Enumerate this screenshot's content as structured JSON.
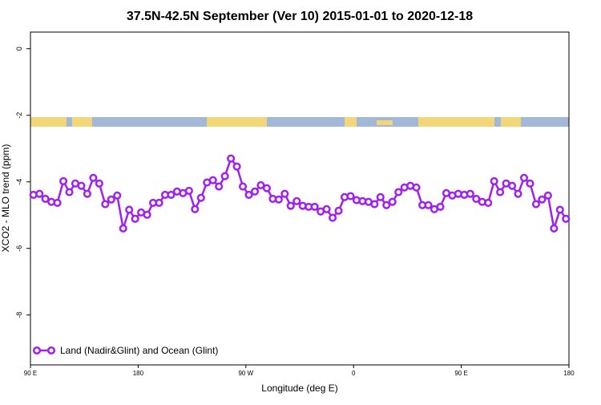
{
  "chart_data": {
    "type": "line",
    "title": "37.5N-42.5N September (Ver 10)   2015-01-01 to 2020-12-18",
    "x_label": "Longitude (deg E)",
    "y_label": "XCO2 - MLO trend (ppm)",
    "x": [
      92.5,
      97.5,
      102.5,
      107.5,
      112.5,
      117.5,
      122.5,
      127.5,
      132.5,
      137.5,
      142.5,
      147.5,
      152.5,
      157.5,
      162.5,
      167.5,
      172.5,
      177.5,
      182.5,
      187.5,
      192.5,
      197.5,
      202.5,
      207.5,
      212.5,
      217.5,
      222.5,
      227.5,
      232.5,
      237.5,
      242.5,
      247.5,
      252.5,
      257.5,
      262.5,
      267.5,
      272.5,
      277.5,
      282.5,
      287.5,
      292.5,
      297.5,
      302.5,
      307.5,
      312.5,
      317.5,
      322.5,
      327.5,
      332.5,
      337.5,
      342.5,
      347.5,
      352.5,
      357.5,
      362.5,
      367.5,
      372.5,
      377.5,
      382.5,
      387.5,
      392.5,
      397.5,
      402.5,
      407.5,
      412.5,
      417.5,
      422.5,
      427.5,
      432.5,
      437.5,
      442.5,
      447.5,
      452.5,
      457.5,
      462.5,
      467.5,
      472.5,
      477.5,
      482.5,
      487.5,
      492.5,
      497.5,
      502.5,
      507.5,
      512.5,
      517.5,
      522.5,
      527.5,
      532.5,
      537.5
    ],
    "series": [
      {
        "name": "Land (Nadir&Glint) and Ocean (Glint)",
        "color": "#a020f0",
        "values": [
          -4.39,
          -4.36,
          -4.51,
          -4.6,
          -4.63,
          -3.98,
          -4.31,
          -4.05,
          -4.12,
          -4.36,
          -3.88,
          -4.05,
          -4.67,
          -4.53,
          -4.41,
          -5.4,
          -4.84,
          -5.11,
          -4.92,
          -4.99,
          -4.63,
          -4.63,
          -4.39,
          -4.39,
          -4.29,
          -4.34,
          -4.27,
          -4.82,
          -4.48,
          -4.02,
          -3.95,
          -4.14,
          -3.83,
          -3.3,
          -3.54,
          -4.14,
          -4.39,
          -4.29,
          -4.1,
          -4.19,
          -4.51,
          -4.53,
          -4.36,
          -4.72,
          -4.58,
          -4.72,
          -4.75,
          -4.75,
          -4.89,
          -4.82,
          -5.08,
          -4.87,
          -4.46,
          -4.43,
          -4.55,
          -4.58,
          -4.6,
          -4.67,
          -4.46,
          -4.7,
          -4.6,
          -4.31,
          -4.17,
          -4.12,
          -4.17,
          -4.7,
          -4.7,
          -4.82,
          -4.75,
          -4.34,
          -4.41,
          -4.36,
          -4.39,
          -4.36,
          -4.51,
          -4.6,
          -4.63,
          -3.98,
          -4.31,
          -4.05,
          -4.12,
          -4.36,
          -3.88,
          -4.05,
          -4.67,
          -4.53,
          -4.41,
          -5.4,
          -4.84,
          -5.11
        ]
      }
    ],
    "xlim": [
      90,
      540
    ],
    "xticks": [
      {
        "value": 90,
        "label": "90 E"
      },
      180,
      {
        "value": 270,
        "label": "90 W"
      },
      {
        "value": 360,
        "label": "0"
      },
      {
        "value": 450,
        "label": "90 E"
      },
      {
        "value": 540,
        "label": "180"
      }
    ],
    "ylim": [
      -9.5,
      0.5
    ],
    "yticks": [
      0,
      -2,
      -4,
      -6,
      -8
    ],
    "legend": "bottom-left"
  }
}
